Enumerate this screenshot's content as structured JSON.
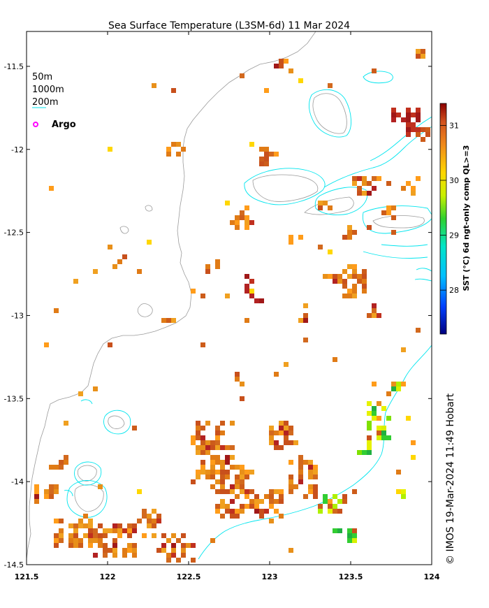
{
  "title": "Sea Surface Temperature (L3SM-6d) 11 Mar 2024",
  "legend": {
    "items": [
      {
        "label": "50m",
        "color": "#ffffff"
      },
      {
        "label": "1000m",
        "color": "#ffffff"
      },
      {
        "label": "200m",
        "color": "#00e5ee"
      }
    ],
    "argo_label": "Argo",
    "argo_color": "#ff00ff"
  },
  "colorbar": {
    "label": "SST (°C) 6d ngt-only comp QL>=3",
    "ticks": [
      "31",
      "30",
      "29",
      "28"
    ],
    "tick_values": [
      31,
      30,
      29,
      28
    ],
    "range": [
      27.2,
      31.4
    ]
  },
  "credit": "© IMOS 19-Mar-2024 11:49 Hobart",
  "axes": {
    "x_ticks": [
      "121.5",
      "122",
      "122.5",
      "123",
      "123.5",
      "124"
    ],
    "x_values": [
      121.5,
      122,
      122.5,
      123,
      123.5,
      124
    ],
    "y_ticks": [
      "-11.5",
      "-12",
      "-12.5",
      "-13",
      "-13.5",
      "-14",
      "-14.5"
    ],
    "y_values": [
      -11.5,
      -12,
      -12.5,
      -13,
      -13.5,
      -14,
      -14.5
    ],
    "xlim": [
      121.5,
      124
    ],
    "ylim": [
      -14.5,
      -11.29
    ]
  },
  "colors": {
    "shelf_200m": "#00e5ee",
    "contour_gray": "#9a9a9a",
    "sst_high": "#b22222",
    "sst_mid": "#e07b16",
    "sst_low": "#32cd32"
  }
}
